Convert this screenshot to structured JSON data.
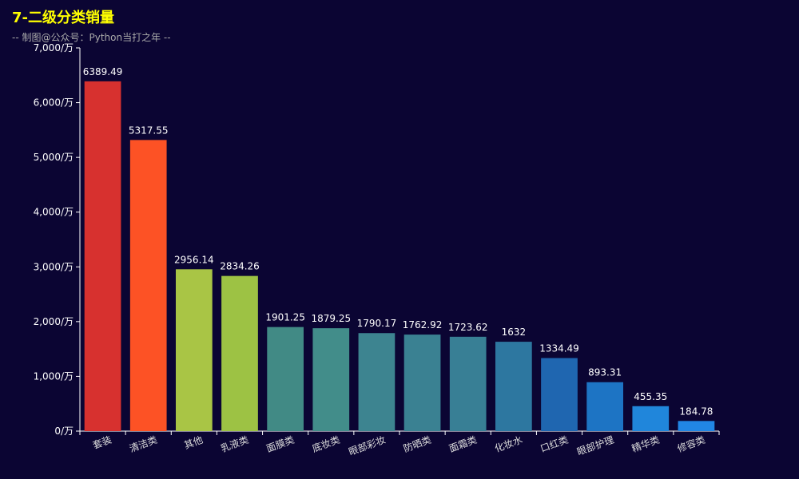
{
  "chart_data": {
    "type": "bar",
    "title": "7-二级分类销量",
    "subtitle": "-- 制图@公众号：Python当打之年 --",
    "categories": [
      "套装",
      "清洁类",
      "其他",
      "乳液类",
      "面膜类",
      "底妆类",
      "眼部彩妆",
      "防晒类",
      "面霜类",
      "化妆水",
      "口红类",
      "眼部护理",
      "精华类",
      "修容类"
    ],
    "values": [
      6389.49,
      5317.55,
      2956.14,
      2834.26,
      1901.25,
      1879.25,
      1790.17,
      1762.92,
      1723.62,
      1632,
      1334.49,
      893.31,
      455.35,
      184.78
    ],
    "value_labels": [
      "6389.49",
      "5317.55",
      "2956.14",
      "2834.26",
      "1901.25",
      "1879.25",
      "1790.17",
      "1762.92",
      "1723.62",
      "1632",
      "1334.49",
      "893.31",
      "455.35",
      "184.78"
    ],
    "colors": [
      "#d7312f",
      "#fd5225",
      "#a9c545",
      "#9dc244",
      "#418a85",
      "#428d8a",
      "#3d8490",
      "#3a8192",
      "#387f95",
      "#2d77a0",
      "#1f66b0",
      "#1d74c4",
      "#2086db",
      "#2186e4"
    ],
    "ylim": [
      0,
      7000
    ],
    "yticks": [
      0,
      1000,
      2000,
      3000,
      4000,
      5000,
      6000,
      7000
    ],
    "ytick_labels": [
      "0/万",
      "1,000/万",
      "2,000/万",
      "3,000/万",
      "4,000/万",
      "5,000/万",
      "6,000/万",
      "7,000/万"
    ],
    "xlabel": "",
    "ylabel": "",
    "grid": false,
    "background": "#0b0533",
    "title_color": "#ffff00"
  }
}
